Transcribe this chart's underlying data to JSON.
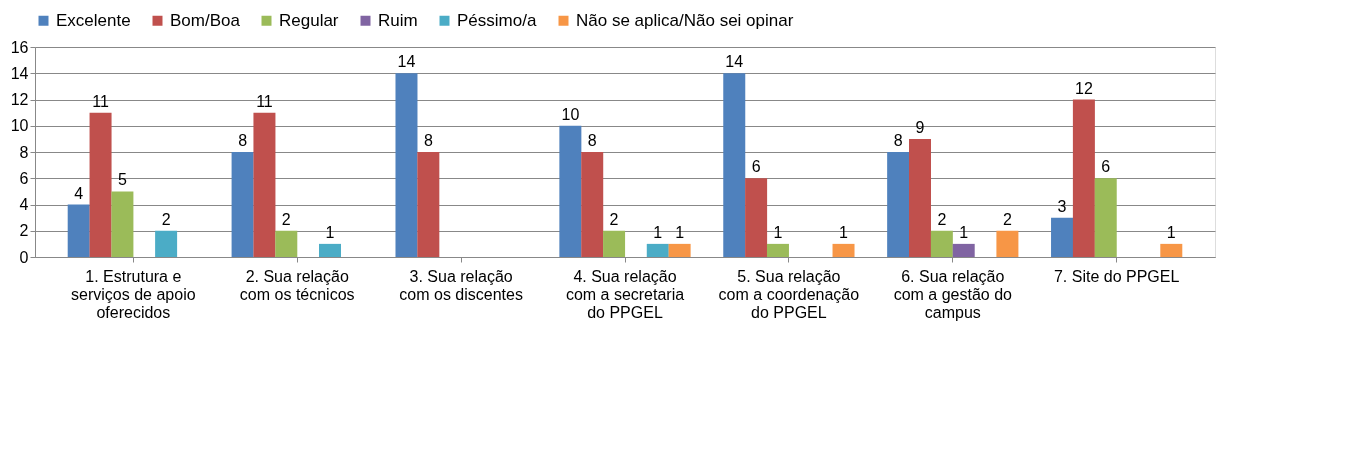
{
  "chart_data": {
    "type": "bar",
    "categories": [
      "1. Estrutura e serviços de apoio oferecidos",
      "2. Sua relação com os técnicos",
      "3. Sua relação com os discentes",
      "4. Sua relação com a secretaria do PPGEL",
      "5. Sua relação com a coordenação do PPGEL",
      "6. Sua relação com a gestão do campus",
      "7. Site do PPGEL"
    ],
    "series": [
      {
        "name": "Excelente",
        "color": "#4f81bd",
        "values": [
          4,
          8,
          14,
          10,
          14,
          8,
          3
        ]
      },
      {
        "name": "Bom/Boa",
        "color": "#c0504d",
        "values": [
          11,
          11,
          8,
          8,
          6,
          9,
          12
        ]
      },
      {
        "name": "Regular",
        "color": "#9bbb59",
        "values": [
          5,
          2,
          null,
          2,
          1,
          2,
          6
        ]
      },
      {
        "name": "Ruim",
        "color": "#8064a2",
        "values": [
          null,
          null,
          null,
          null,
          null,
          1,
          null
        ]
      },
      {
        "name": "Péssimo/a",
        "color": "#4bacc6",
        "values": [
          2,
          1,
          null,
          1,
          null,
          null,
          null
        ]
      },
      {
        "name": "Não se aplica/Não sei opinar",
        "color": "#f79646",
        "values": [
          null,
          null,
          null,
          1,
          1,
          2,
          1
        ]
      }
    ],
    "ylim": [
      0,
      16
    ],
    "yticks": [
      0,
      2,
      4,
      6,
      8,
      10,
      12,
      14,
      16
    ],
    "grid": "y",
    "legend": "top",
    "data_labels": true
  }
}
